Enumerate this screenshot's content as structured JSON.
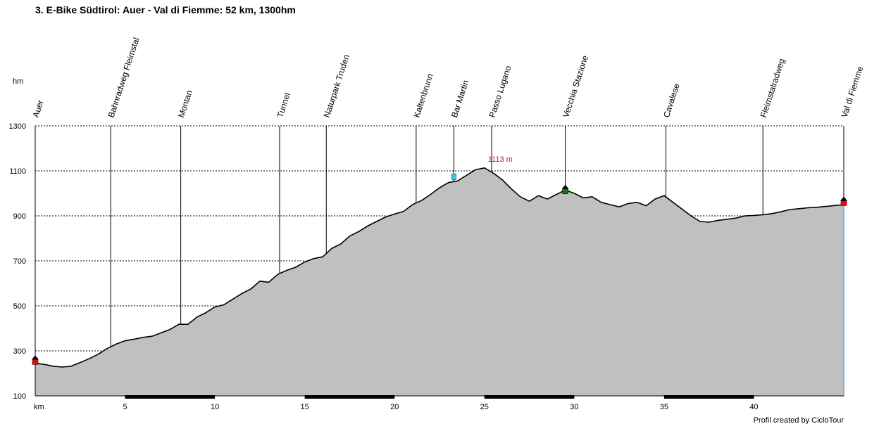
{
  "chart_data": {
    "type": "area",
    "title": "3. E-Bike Südtirol: Auer - Val di Fiemme: 52 km, 1300hm",
    "ylabel": "hm",
    "xlabel": "km",
    "xlim": [
      0,
      45
    ],
    "ylim": [
      100,
      1300
    ],
    "x_ticks": [
      5,
      10,
      15,
      20,
      25,
      30,
      35,
      40
    ],
    "y_ticks": [
      100,
      300,
      500,
      700,
      900,
      1100,
      1300
    ],
    "grid": "horizontal dashed",
    "fill_color": "#c0c0c0",
    "line_color": "#000000",
    "waypoints": [
      {
        "name": "Auer",
        "km": 0
      },
      {
        "name": "Bahnradweg Fleimstal",
        "km": 4.2
      },
      {
        "name": "Montan",
        "km": 8.1
      },
      {
        "name": "Tunnel",
        "km": 13.6
      },
      {
        "name": "Naturpark Truden",
        "km": 16.2
      },
      {
        "name": "Kaltenbrunn",
        "km": 21.2
      },
      {
        "name": "Bar Martin",
        "km": 23.3
      },
      {
        "name": "Passo Lugano",
        "km": 25.4
      },
      {
        "name": "Vecchia Stazione",
        "km": 29.5
      },
      {
        "name": "Cavalese",
        "km": 35.1
      },
      {
        "name": "Fleimstalradweg",
        "km": 40.5
      },
      {
        "name": "Val di Fiemme",
        "km": 45
      }
    ],
    "peak": {
      "label": "1113 m",
      "km": 25.0,
      "value": 1113
    },
    "profile": {
      "x": [
        0,
        0.5,
        1,
        1.5,
        2,
        2.5,
        3,
        3.5,
        4,
        4.5,
        5,
        5.5,
        6,
        6.5,
        7,
        7.5,
        8,
        8.5,
        9,
        9.5,
        10,
        10.5,
        11,
        11.5,
        12,
        12.5,
        13,
        13.5,
        14,
        14.5,
        15,
        15.5,
        16,
        16.5,
        17,
        17.5,
        18,
        18.5,
        19,
        19.5,
        20,
        20.5,
        21,
        21.5,
        22,
        22.5,
        23,
        23.5,
        24,
        24.5,
        25,
        25.5,
        26,
        26.5,
        27,
        27.5,
        28,
        28.5,
        29,
        29.5,
        30,
        30.5,
        31,
        31.5,
        32,
        32.5,
        33,
        33.5,
        34,
        34.5,
        35,
        35.5,
        36,
        36.5,
        37,
        37.5,
        38,
        38.5,
        39,
        39.5,
        40,
        40.5,
        41,
        41.5,
        42,
        42.5,
        43,
        43.5,
        44,
        44.5,
        45
      ],
      "y": [
        245,
        240,
        232,
        228,
        232,
        248,
        265,
        285,
        310,
        330,
        345,
        352,
        360,
        365,
        380,
        395,
        418,
        418,
        450,
        470,
        495,
        505,
        530,
        555,
        575,
        610,
        605,
        640,
        658,
        672,
        695,
        710,
        718,
        755,
        775,
        810,
        830,
        855,
        875,
        895,
        908,
        920,
        950,
        968,
        995,
        1025,
        1048,
        1055,
        1080,
        1105,
        1113,
        1090,
        1060,
        1020,
        985,
        965,
        990,
        975,
        995,
        1015,
        1000,
        980,
        985,
        960,
        950,
        940,
        955,
        960,
        945,
        975,
        990,
        960,
        930,
        900,
        875,
        872,
        880,
        885,
        890,
        900,
        902,
        905,
        910,
        918,
        928,
        932,
        936,
        938,
        942,
        946,
        950
      ]
    },
    "markers": [
      {
        "km": 0,
        "value": 252,
        "type": "start-end",
        "color": "#ff0000"
      },
      {
        "km": 23.3,
        "value": 1058,
        "type": "bar-cafe",
        "color": "#33ccff"
      },
      {
        "km": 29.5,
        "value": 1010,
        "type": "station",
        "color": "#008000"
      },
      {
        "km": 45,
        "value": 958,
        "type": "start-end",
        "color": "#ff0000"
      }
    ],
    "bottom_bar_segments": [
      [
        5,
        10
      ],
      [
        15,
        20
      ],
      [
        25,
        30
      ],
      [
        35,
        40
      ]
    ]
  },
  "footer": {
    "credit": "Profil created by CicloTour"
  }
}
